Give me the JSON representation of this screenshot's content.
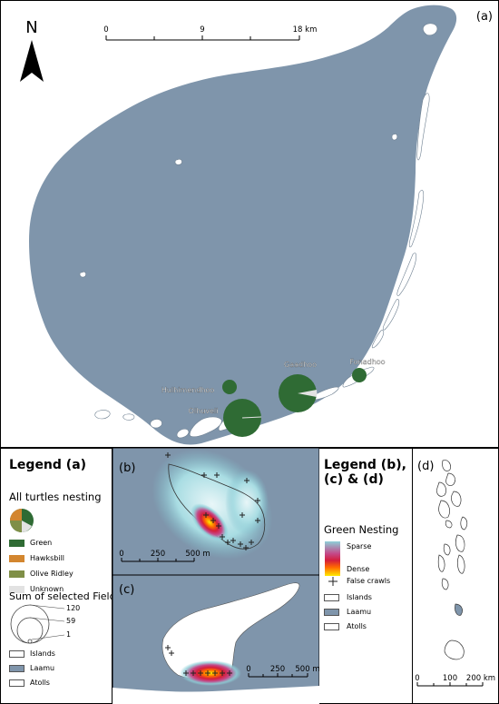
{
  "panel_a": {
    "label": "(a)",
    "north": "N",
    "scale": {
      "ticks": [
        "0",
        "9",
        "18 km"
      ]
    },
    "islands": [
      {
        "name": "Gaadhoo",
        "value": 120,
        "green": 0.86,
        "unknown": 0.14
      },
      {
        "name": "Olhuveli",
        "value": 120,
        "green": 0.99,
        "unknown": 0.01
      },
      {
        "name": "Fonadhoo",
        "value": 25,
        "green": 1.0,
        "unknown": 0
      },
      {
        "name": "Hulhimendhoo",
        "value": 20,
        "green": 1.0,
        "unknown": 0
      }
    ]
  },
  "legend_a": {
    "title": "Legend (a)",
    "nesting_title": "All turtles nesting",
    "items": [
      {
        "label": "Green",
        "color": "#2f6b34"
      },
      {
        "label": "Hawksbill",
        "color": "#d3862f"
      },
      {
        "label": "Olive Ridley",
        "color": "#7f8f47"
      },
      {
        "label": "Unknown",
        "color": "#e2e2e2"
      }
    ],
    "size_title": "Sum of selected Fields",
    "size_values": [
      "120",
      "59",
      "1"
    ],
    "layers": [
      {
        "label": "Islands",
        "color": "#ffffff"
      },
      {
        "label": "Laamu",
        "color": "#7f95ab"
      },
      {
        "label": "Atolls",
        "color": "#ffffff"
      }
    ]
  },
  "panel_b": {
    "label": "(b)",
    "scale": [
      "0",
      "250",
      "500 m"
    ]
  },
  "panel_c": {
    "label": "(c)",
    "scale": [
      "0",
      "250",
      "500 m"
    ]
  },
  "legend_bcd": {
    "title": "Legend (b), (c) & (d)",
    "nesting_title": "Green Nesting",
    "sparse": "Sparse",
    "dense": "Dense",
    "false_crawls": "False crawls",
    "layers": [
      {
        "label": "Islands",
        "color": "#ffffff"
      },
      {
        "label": "Laamu",
        "color": "#7f95ab"
      },
      {
        "label": "Atolls",
        "color": "#ffffff"
      }
    ]
  },
  "panel_d": {
    "label": "(d)",
    "scale": [
      "0",
      "100",
      "200 km"
    ]
  },
  "colors": {
    "laamu": "#7f95ab",
    "green": "#2f6b34"
  }
}
